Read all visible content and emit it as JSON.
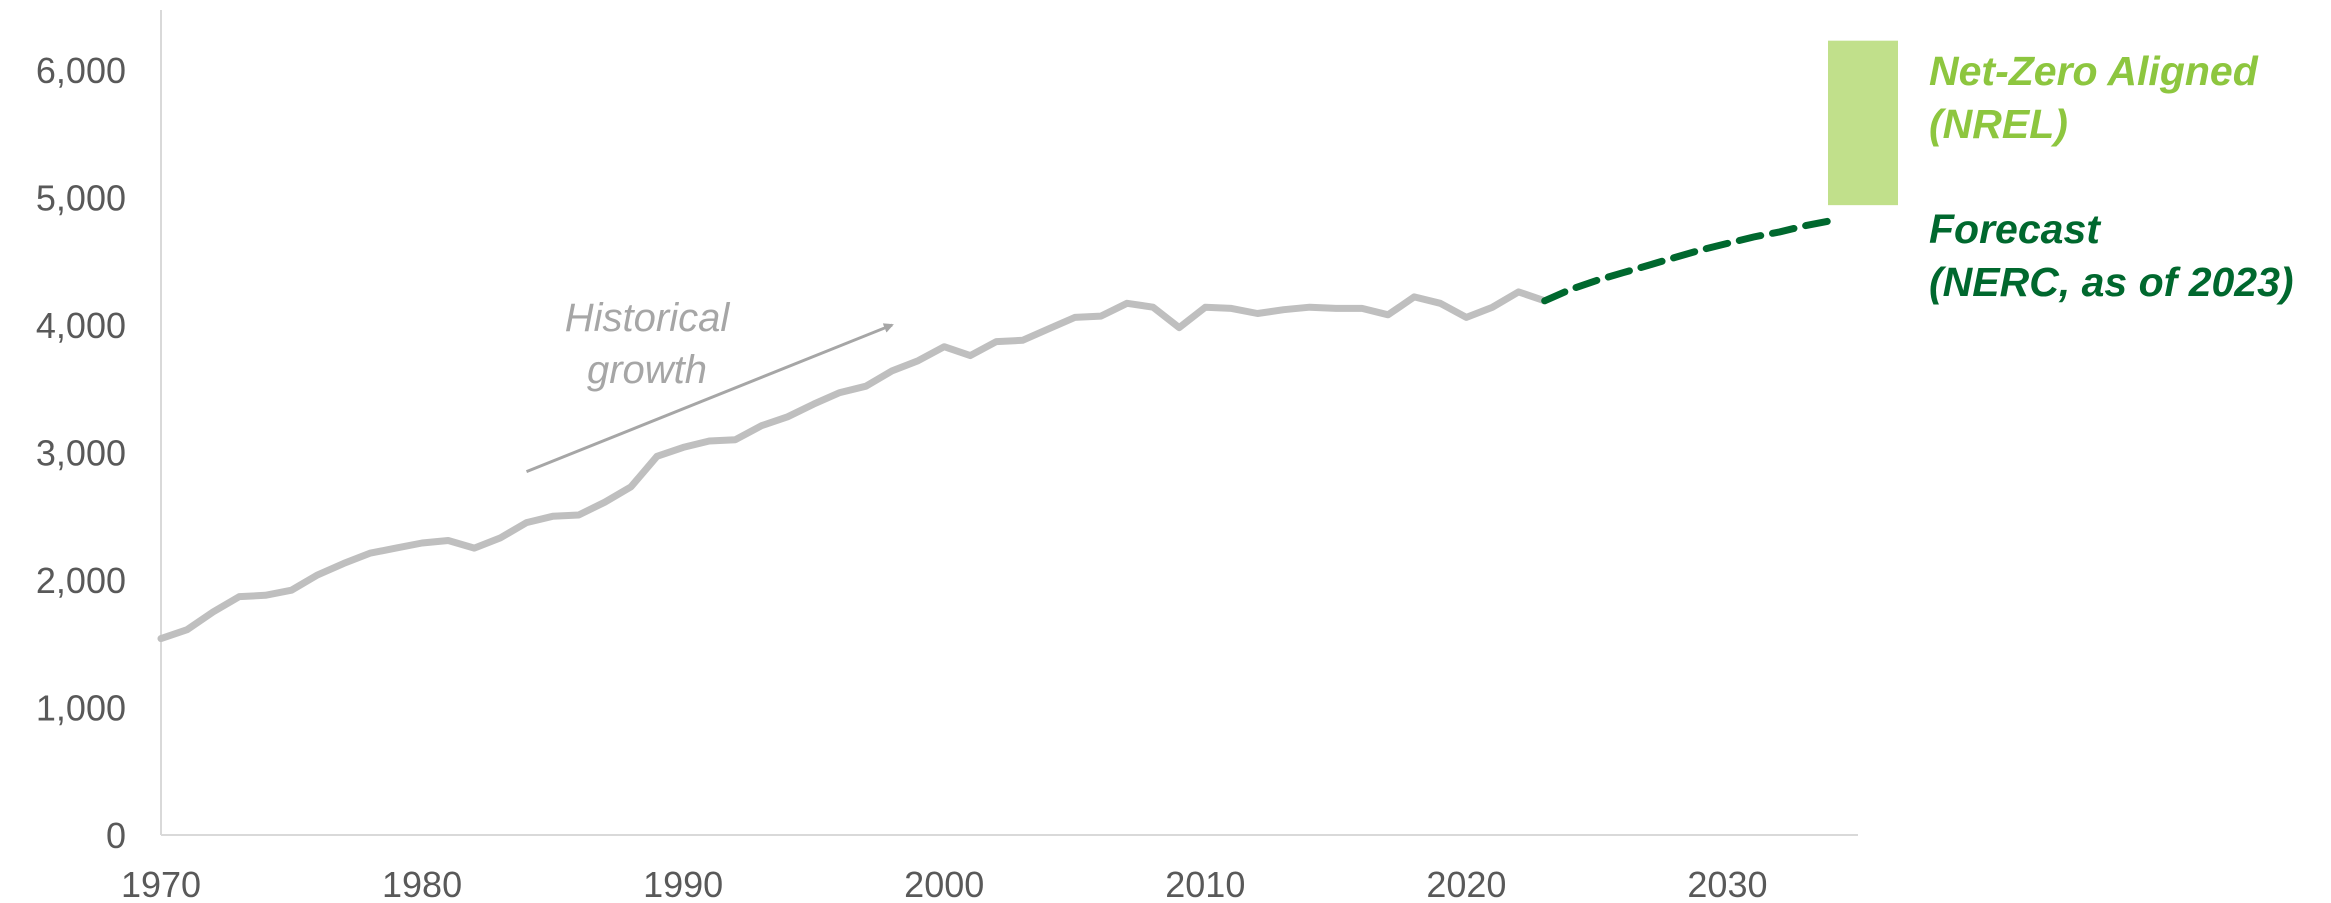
{
  "chart_data": {
    "type": "line",
    "xlim": [
      1970,
      2035
    ],
    "ylim": [
      0,
      6500
    ],
    "x_ticks": [
      1970,
      1980,
      1990,
      2000,
      2010,
      2020,
      2030
    ],
    "y_ticks": [
      0,
      1000,
      2000,
      3000,
      4000,
      5000,
      6000
    ],
    "x_tick_labels": [
      "1970",
      "1980",
      "1990",
      "2000",
      "2010",
      "2020",
      "2030"
    ],
    "y_tick_labels": [
      "0",
      "1,000",
      "2,000",
      "3,000",
      "4,000",
      "5,000",
      "6,000"
    ],
    "grid": false,
    "series": [
      {
        "key": "historical",
        "color": "#bfbfbf",
        "style": "solid",
        "points": [
          [
            1970,
            1540
          ],
          [
            1971,
            1610
          ],
          [
            1972,
            1750
          ],
          [
            1973,
            1870
          ],
          [
            1974,
            1880
          ],
          [
            1975,
            1920
          ],
          [
            1976,
            2040
          ],
          [
            1977,
            2130
          ],
          [
            1978,
            2210
          ],
          [
            1979,
            2250
          ],
          [
            1980,
            2290
          ],
          [
            1981,
            2310
          ],
          [
            1982,
            2250
          ],
          [
            1983,
            2330
          ],
          [
            1984,
            2450
          ],
          [
            1985,
            2500
          ],
          [
            1986,
            2510
          ],
          [
            1987,
            2610
          ],
          [
            1988,
            2730
          ],
          [
            1989,
            2970
          ],
          [
            1990,
            3040
          ],
          [
            1991,
            3090
          ],
          [
            1992,
            3100
          ],
          [
            1993,
            3210
          ],
          [
            1994,
            3280
          ],
          [
            1995,
            3380
          ],
          [
            1996,
            3470
          ],
          [
            1997,
            3520
          ],
          [
            1998,
            3640
          ],
          [
            1999,
            3720
          ],
          [
            2000,
            3830
          ],
          [
            2001,
            3760
          ],
          [
            2002,
            3870
          ],
          [
            2003,
            3880
          ],
          [
            2004,
            3970
          ],
          [
            2005,
            4060
          ],
          [
            2006,
            4070
          ],
          [
            2007,
            4170
          ],
          [
            2008,
            4140
          ],
          [
            2009,
            3980
          ],
          [
            2010,
            4140
          ],
          [
            2011,
            4130
          ],
          [
            2012,
            4090
          ],
          [
            2013,
            4120
          ],
          [
            2014,
            4140
          ],
          [
            2015,
            4130
          ],
          [
            2016,
            4130
          ],
          [
            2017,
            4080
          ],
          [
            2018,
            4220
          ],
          [
            2019,
            4170
          ],
          [
            2020,
            4060
          ],
          [
            2021,
            4140
          ],
          [
            2022,
            4260
          ],
          [
            2023,
            4190
          ]
        ]
      },
      {
        "key": "forecast",
        "name": "Forecast\n(NERC, as of 2023)",
        "color": "#00682e",
        "style": "dashed",
        "points": [
          [
            2023,
            4190
          ],
          [
            2024,
            4280
          ],
          [
            2025,
            4350
          ],
          [
            2026,
            4410
          ],
          [
            2027,
            4470
          ],
          [
            2028,
            4530
          ],
          [
            2029,
            4590
          ],
          [
            2030,
            4640
          ],
          [
            2031,
            4690
          ],
          [
            2032,
            4730
          ],
          [
            2033,
            4780
          ],
          [
            2034,
            4820
          ]
        ]
      }
    ],
    "range_bar": {
      "name": "Net-Zero Aligned\n(NREL)",
      "color": "#c1e08b",
      "x_center": 2035,
      "y_low": 4940,
      "y_high": 6230
    },
    "annotations": [
      {
        "text": "Historical\ngrowth",
        "arrow_from": [
          1984,
          2850
        ],
        "arrow_to": [
          1998,
          4000
        ]
      }
    ],
    "label_colors": {
      "net_zero": "#8dc63f",
      "forecast": "#00682e"
    }
  }
}
